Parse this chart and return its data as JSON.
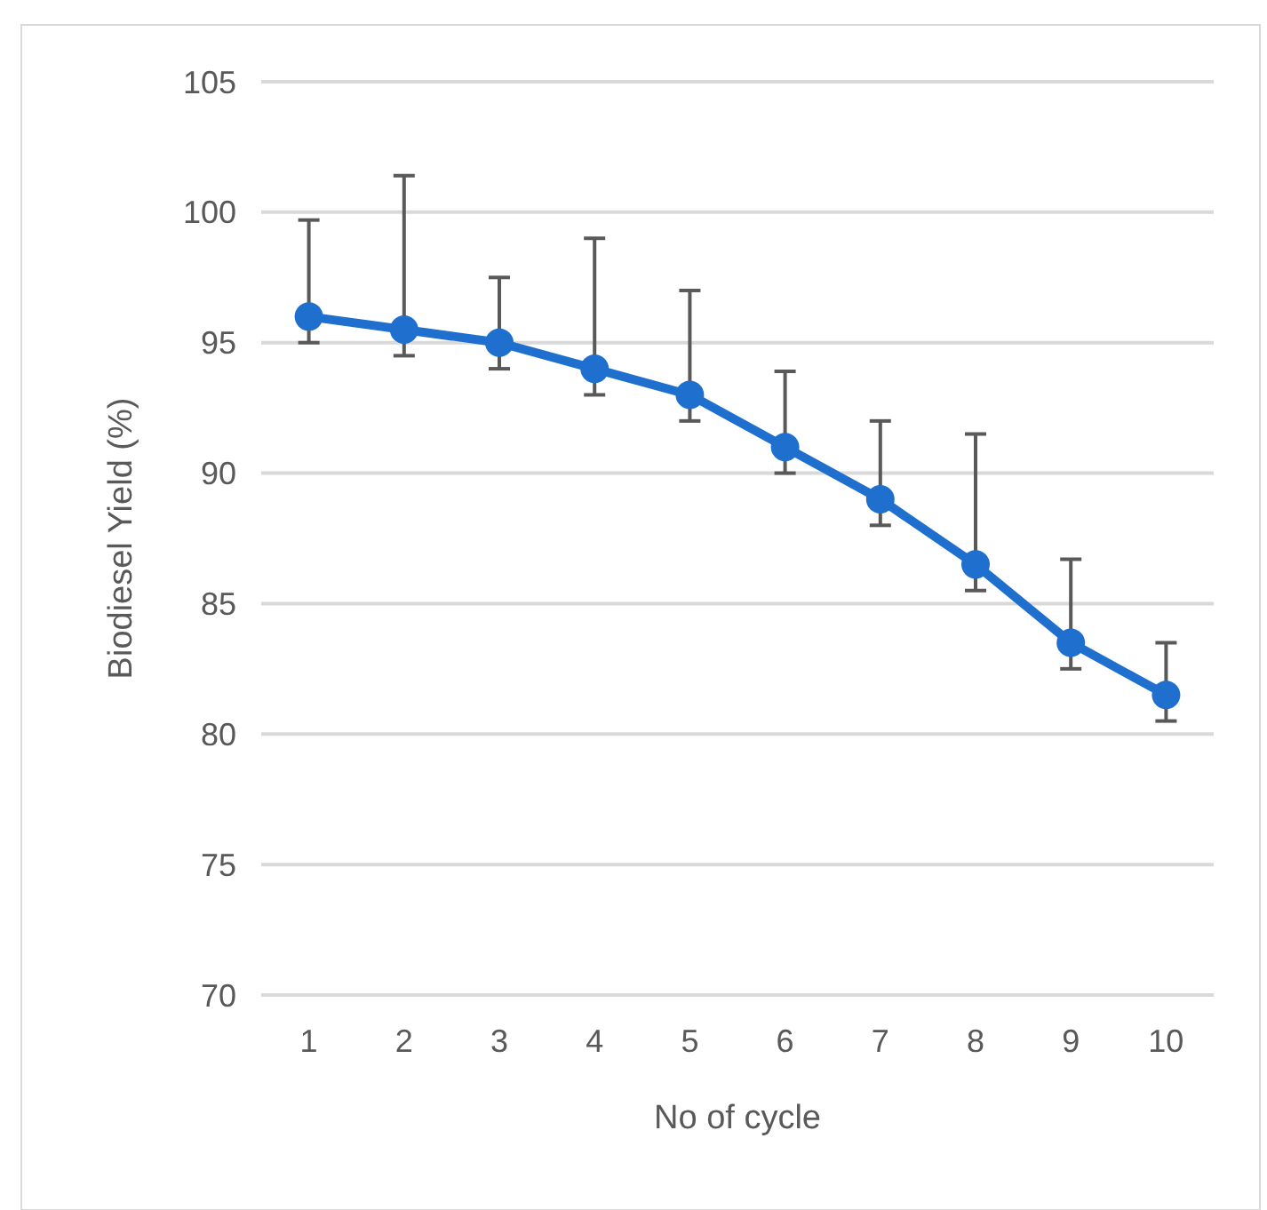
{
  "chart_data": {
    "type": "line",
    "xlabel": "No of cycle",
    "ylabel": "Biodiesel Yield (%)",
    "categories": [
      "1",
      "2",
      "3",
      "4",
      "5",
      "6",
      "7",
      "8",
      "9",
      "10"
    ],
    "series": [
      {
        "color": "#1f6fce",
        "values": [
          96,
          95.5,
          95,
          94,
          93,
          91,
          89,
          86.5,
          83.5,
          81.5
        ],
        "errors": [
          [
            95,
            99.7
          ],
          [
            94.5,
            101.4
          ],
          [
            94,
            97.5
          ],
          [
            93,
            99
          ],
          [
            92,
            97
          ],
          [
            90,
            93.9
          ],
          [
            88,
            92
          ],
          [
            85.5,
            91.5
          ],
          [
            82.5,
            86.7
          ],
          [
            80.5,
            83.5
          ]
        ]
      }
    ],
    "ylim": [
      70,
      105
    ],
    "yticks": [
      70,
      75,
      80,
      85,
      90,
      95,
      100,
      105
    ],
    "grid": "y",
    "marker": "circle",
    "line_style": "solid"
  }
}
